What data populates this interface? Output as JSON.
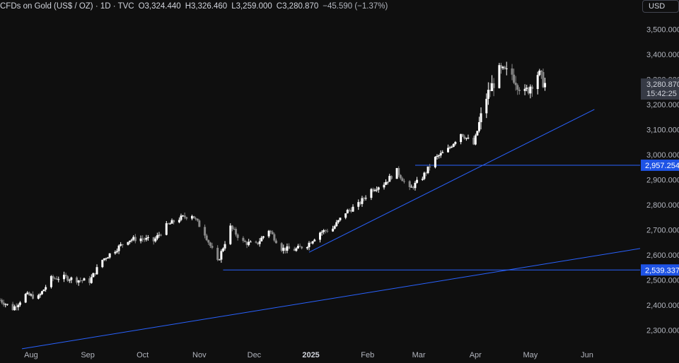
{
  "header": {
    "title": "CFDs on Gold (US$ / OZ) · 1D · TVC",
    "open_label": "O",
    "open": "3,324.440",
    "high_label": "H",
    "high": "3,326.460",
    "low_label": "L",
    "low": "3,259.000",
    "close_label": "C",
    "close": "3,280.870",
    "change": "−45.590 (−1.37%)"
  },
  "currency_button": "USD",
  "colors": {
    "background": "#0f0f0f",
    "candle_up": "#ffffff",
    "candle_down": "#888888",
    "trendline": "#2962ff",
    "level_tag": "#1e53e5",
    "last_tag": "#363a45"
  },
  "chart_data": {
    "type": "candlestick",
    "title": "CFDs on Gold (US$ / OZ) · 1D · TVC",
    "ylim": [
      2250,
      3560
    ],
    "y_ticks": [
      2300,
      2400,
      2500,
      2600,
      2700,
      2800,
      2900,
      3000,
      3100,
      3200,
      3300,
      3400,
      3500
    ],
    "y_tick_labels": [
      "2,300.000",
      "2,400.000",
      "2,500.000",
      "2,600.000",
      "2,700.000",
      "2,800.000",
      "2,900.000",
      "3,000.000",
      "3,100.000",
      "3,200.000",
      "3,300.000",
      "3,400.000",
      "3,500.000"
    ],
    "x_ticks": [
      {
        "label": "Aug",
        "date": "2024-08-01"
      },
      {
        "label": "Sep",
        "date": "2024-09-01"
      },
      {
        "label": "Oct",
        "date": "2024-10-01"
      },
      {
        "label": "Nov",
        "date": "2024-11-01"
      },
      {
        "label": "Dec",
        "date": "2024-12-01"
      },
      {
        "label": "2025",
        "date": "2025-01-01",
        "bold": true
      },
      {
        "label": "Feb",
        "date": "2025-02-01"
      },
      {
        "label": "Mar",
        "date": "2025-03-01"
      },
      {
        "label": "Apr",
        "date": "2025-04-01"
      },
      {
        "label": "May",
        "date": "2025-05-01"
      },
      {
        "label": "Jun",
        "date": "2025-06-01"
      }
    ],
    "xlim": [
      "2024-07-15",
      "2025-06-30"
    ],
    "closes": [
      {
        "date": "2024-07-15",
        "close": 2420
      },
      {
        "date": "2024-07-22",
        "close": 2385
      },
      {
        "date": "2024-07-29",
        "close": 2440
      },
      {
        "date": "2024-08-05",
        "close": 2430
      },
      {
        "date": "2024-08-12",
        "close": 2505
      },
      {
        "date": "2024-08-19",
        "close": 2510
      },
      {
        "date": "2024-08-26",
        "close": 2500
      },
      {
        "date": "2024-09-02",
        "close": 2495
      },
      {
        "date": "2024-09-09",
        "close": 2580
      },
      {
        "date": "2024-09-16",
        "close": 2620
      },
      {
        "date": "2024-09-23",
        "close": 2660
      },
      {
        "date": "2024-09-30",
        "close": 2665
      },
      {
        "date": "2024-10-07",
        "close": 2655
      },
      {
        "date": "2024-10-14",
        "close": 2715
      },
      {
        "date": "2024-10-21",
        "close": 2745
      },
      {
        "date": "2024-10-28",
        "close": 2760
      },
      {
        "date": "2024-11-04",
        "close": 2685
      },
      {
        "date": "2024-11-11",
        "close": 2570
      },
      {
        "date": "2024-11-18",
        "close": 2710
      },
      {
        "date": "2024-11-25",
        "close": 2650
      },
      {
        "date": "2024-12-02",
        "close": 2640
      },
      {
        "date": "2024-12-09",
        "close": 2700
      },
      {
        "date": "2024-12-16",
        "close": 2625
      },
      {
        "date": "2024-12-23",
        "close": 2620
      },
      {
        "date": "2024-12-30",
        "close": 2640
      },
      {
        "date": "2025-01-06",
        "close": 2690
      },
      {
        "date": "2025-01-13",
        "close": 2705
      },
      {
        "date": "2025-01-20",
        "close": 2770
      },
      {
        "date": "2025-01-27",
        "close": 2800
      },
      {
        "date": "2025-02-03",
        "close": 2860
      },
      {
        "date": "2025-02-10",
        "close": 2885
      },
      {
        "date": "2025-02-17",
        "close": 2935
      },
      {
        "date": "2025-02-24",
        "close": 2860
      },
      {
        "date": "2025-03-03",
        "close": 2910
      },
      {
        "date": "2025-03-10",
        "close": 2985
      },
      {
        "date": "2025-03-17",
        "close": 3020
      },
      {
        "date": "2025-03-24",
        "close": 3085
      },
      {
        "date": "2025-03-31",
        "close": 3040
      },
      {
        "date": "2025-04-07",
        "close": 3230
      },
      {
        "date": "2025-04-14",
        "close": 3330
      },
      {
        "date": "2025-04-21",
        "close": 3320
      },
      {
        "date": "2025-04-28",
        "close": 3240
      },
      {
        "date": "2025-05-05",
        "close": 3325
      },
      {
        "date": "2025-05-09",
        "close": 3280.87
      }
    ],
    "horizontal_levels": [
      {
        "price": 2957.254,
        "label": "2,957.254",
        "from": "2025-02-27",
        "to_edge": true
      },
      {
        "price": 2539.337,
        "label": "2,539.337",
        "from": "2024-11-14",
        "to_edge": true
      }
    ],
    "trendlines": [
      {
        "from_date": "2024-07-27",
        "from_price": 2225,
        "to_date": "2025-06-30",
        "to_price": 2625
      },
      {
        "from_date": "2024-12-31",
        "from_price": 2610,
        "to_date": "2025-06-05",
        "to_price": 3180
      }
    ],
    "last_price_label": "3,280.870",
    "countdown": "15:42:25"
  }
}
